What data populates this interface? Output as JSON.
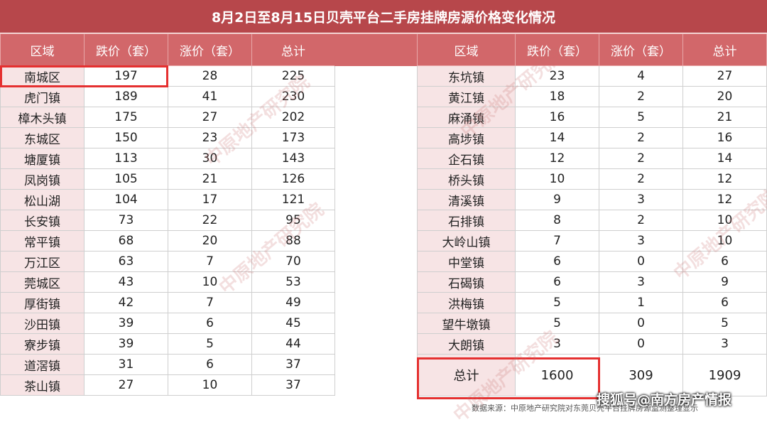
{
  "title": "8月2日至8月15日贝壳平台二手房挂牌房源价格变化情况",
  "headers": [
    "区域",
    "跌价（套）",
    "涨价（套）",
    "总计"
  ],
  "left_rows": [
    [
      "南城区",
      "197",
      "28",
      "225"
    ],
    [
      "虎门镇",
      "189",
      "41",
      "230"
    ],
    [
      "樟木头镇",
      "175",
      "27",
      "202"
    ],
    [
      "东城区",
      "150",
      "23",
      "173"
    ],
    [
      "塘厦镇",
      "113",
      "30",
      "143"
    ],
    [
      "凤岗镇",
      "105",
      "21",
      "126"
    ],
    [
      "松山湖",
      "104",
      "17",
      "121"
    ],
    [
      "长安镇",
      "73",
      "22",
      "95"
    ],
    [
      "常平镇",
      "68",
      "20",
      "88"
    ],
    [
      "万江区",
      "63",
      "7",
      "70"
    ],
    [
      "莞城区",
      "43",
      "10",
      "53"
    ],
    [
      "厚街镇",
      "42",
      "7",
      "49"
    ],
    [
      "沙田镇",
      "39",
      "6",
      "45"
    ],
    [
      "寮步镇",
      "39",
      "5",
      "44"
    ],
    [
      "道滘镇",
      "31",
      "6",
      "37"
    ],
    [
      "茶山镇",
      "27",
      "10",
      "37"
    ]
  ],
  "right_rows": [
    [
      "东坑镇",
      "23",
      "4",
      "27"
    ],
    [
      "黄江镇",
      "18",
      "2",
      "20"
    ],
    [
      "麻涌镇",
      "16",
      "5",
      "21"
    ],
    [
      "高埗镇",
      "14",
      "2",
      "16"
    ],
    [
      "企石镇",
      "12",
      "2",
      "14"
    ],
    [
      "桥头镇",
      "10",
      "2",
      "12"
    ],
    [
      "清溪镇",
      "9",
      "3",
      "12"
    ],
    [
      "石排镇",
      "8",
      "2",
      "10"
    ],
    [
      "大岭山镇",
      "7",
      "3",
      "10"
    ],
    [
      "中堂镇",
      "6",
      "0",
      "6"
    ],
    [
      "石碣镇",
      "6",
      "3",
      "9"
    ],
    [
      "洪梅镇",
      "5",
      "1",
      "6"
    ],
    [
      "望牛墩镇",
      "5",
      "0",
      "5"
    ],
    [
      "大朗镇",
      "3",
      "0",
      "3"
    ]
  ],
  "total_row": [
    "总计",
    "1600",
    "309",
    "1909"
  ],
  "watermark_text": "中原地产研究院",
  "source_note": "数据来源：中原地产研究院对东莞贝壳平台挂牌房源监测整理显示",
  "logo_text": "搜狐号@南方房产情报",
  "colors": {
    "title_bg": "#b7474b",
    "header_bg": "#d2676a",
    "region_bg": "#f7e4e5",
    "highlight": "#e53030"
  }
}
